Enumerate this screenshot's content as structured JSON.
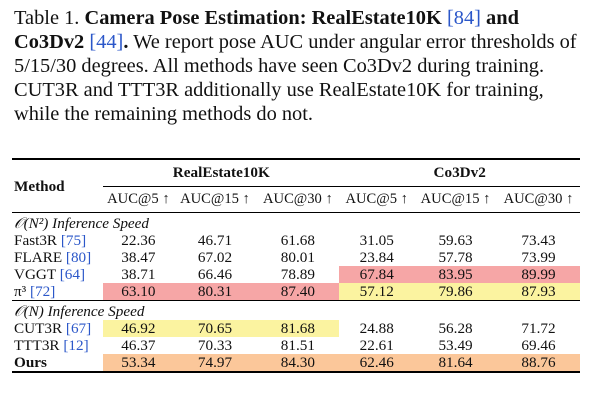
{
  "caption": {
    "label": "Table 1.",
    "title_a": "Camera Pose Estimation: RealEstate10K",
    "ref_a": "[84]",
    "title_b": "and Co3Dv2",
    "ref_b": "[44]",
    "title_c": ".",
    "text": "We report pose AUC under angular error thresholds of 5/15/30 degrees. All methods have seen Co3Dv2 during training. CUT3R and TTT3R additionally use RealEstate10K for training, while the remaining methods do not."
  },
  "table": {
    "method_header": "Method",
    "group_headers": [
      "RealEstate10K",
      "Co3Dv2"
    ],
    "columns": [
      "AUC@5 ↑",
      "AUC@15 ↑",
      "AUC@30 ↑",
      "AUC@5 ↑",
      "AUC@15 ↑",
      "AUC@30 ↑"
    ],
    "sections": [
      {
        "title": "𝒪(N²) Inference Speed",
        "rows": [
          {
            "method": "Fast3R",
            "ref": "[75]",
            "values": [
              "22.36",
              "46.71",
              "61.68",
              "31.05",
              "59.63",
              "73.43"
            ],
            "highlight": [
              "",
              "",
              "",
              "",
              "",
              ""
            ]
          },
          {
            "method": "FLARE",
            "ref": "[80]",
            "values": [
              "38.47",
              "67.02",
              "80.01",
              "23.84",
              "57.78",
              "73.99"
            ],
            "highlight": [
              "",
              "",
              "",
              "",
              "",
              ""
            ]
          },
          {
            "method": "VGGT",
            "ref": "[64]",
            "values": [
              "38.71",
              "66.46",
              "78.89",
              "67.84",
              "83.95",
              "89.99"
            ],
            "highlight": [
              "",
              "",
              "",
              "red",
              "red",
              "red"
            ]
          },
          {
            "method": "π³",
            "ref": "[72]",
            "values": [
              "63.10",
              "80.31",
              "87.40",
              "57.12",
              "79.86",
              "87.93"
            ],
            "highlight": [
              "red",
              "red",
              "red",
              "yellow",
              "yellow",
              "yellow"
            ]
          }
        ]
      },
      {
        "title": "𝒪(N) Inference Speed",
        "rows": [
          {
            "method": "CUT3R",
            "ref": "[67]",
            "values": [
              "46.92",
              "70.65",
              "81.68",
              "24.88",
              "56.28",
              "71.72"
            ],
            "highlight": [
              "yellow",
              "yellow",
              "yellow",
              "",
              "",
              ""
            ]
          },
          {
            "method": "TTT3R",
            "ref": "[12]",
            "values": [
              "46.37",
              "70.33",
              "81.51",
              "22.61",
              "53.49",
              "69.46"
            ],
            "highlight": [
              "",
              "",
              "",
              "",
              "",
              ""
            ]
          },
          {
            "method": "Ours",
            "ref": "",
            "values": [
              "53.34",
              "74.97",
              "84.30",
              "62.46",
              "81.64",
              "88.76"
            ],
            "highlight": [
              "orange",
              "orange",
              "orange",
              "orange",
              "orange",
              "orange"
            ],
            "bold": true
          }
        ]
      }
    ]
  },
  "colors": {
    "first": "#f6a6a6",
    "second": "#fbc79a",
    "third": "#fbf3a0",
    "link": "#2b57c9"
  }
}
